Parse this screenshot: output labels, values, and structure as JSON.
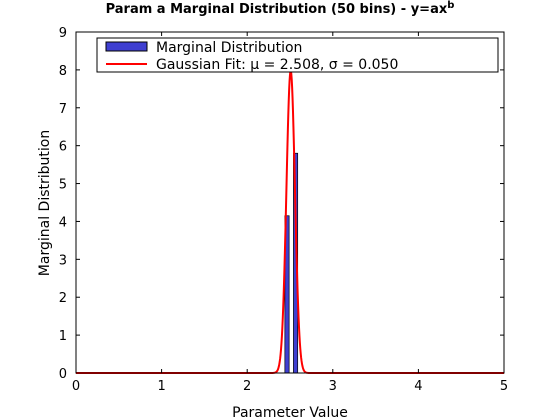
{
  "chart_data": {
    "type": "bar",
    "title": "Param a Marginal Distribution (50 bins) - y=ax",
    "title_superscript": "b",
    "xlabel": "Parameter Value",
    "ylabel": "Marginal Distribution",
    "xlim": [
      0,
      5
    ],
    "ylim": [
      0,
      9
    ],
    "xticks": [
      "0",
      "1",
      "2",
      "3",
      "4",
      "5"
    ],
    "yticks": [
      "0",
      "1",
      "2",
      "3",
      "4",
      "5",
      "6",
      "7",
      "8",
      "9"
    ],
    "grid": false,
    "legend_position": "top",
    "bar_color": "#3f3fd1",
    "line_color": "#ff0000",
    "series": [
      {
        "name": "Marginal Distribution",
        "kind": "bar",
        "bins": [
          {
            "x_start": 2.44,
            "x_end": 2.49,
            "value": 4.15
          },
          {
            "x_start": 2.49,
            "x_end": 2.54,
            "value": 0
          },
          {
            "x_start": 2.54,
            "x_end": 2.59,
            "value": 5.8
          }
        ]
      },
      {
        "name": "Gaussian Fit: μ = 2.508, σ  = 0.050",
        "kind": "line",
        "mu": 2.508,
        "sigma": 0.05,
        "x_range": [
          0,
          5
        ]
      }
    ]
  }
}
